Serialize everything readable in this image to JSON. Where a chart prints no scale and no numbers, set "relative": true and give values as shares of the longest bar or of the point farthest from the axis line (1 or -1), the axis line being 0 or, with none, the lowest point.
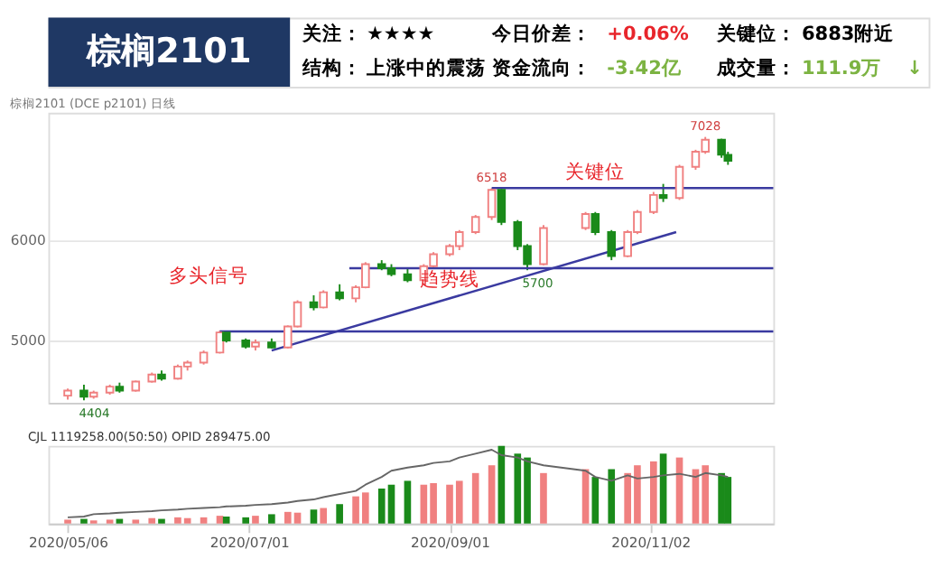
{
  "chart_data": [
    {
      "type": "other",
      "title": "棕榈2101",
      "annotations": [
        "关注：",
        "★★★★",
        "今日价差：",
        "+0.06%",
        "关键位：",
        "6883附近",
        "结构：",
        "上涨中的震荡",
        "资金流向：",
        "-3.42亿",
        "成交量：",
        "111.9万",
        "↓"
      ],
      "colors": [
        "#000000",
        "#000000",
        "#000000",
        "#e8252b",
        "#000000",
        "#000000",
        "#000000",
        "#000000",
        "#000000",
        "#7cb342",
        "#000000",
        "#7cb342",
        "#7cb342"
      ]
    },
    {
      "type": "candlestick",
      "subtitle": "棕榈2101 (DCE p2101)  日线",
      "x": [
        "2020-05-06",
        "2020-05-11",
        "2020-05-14",
        "2020-05-19",
        "2020-05-22",
        "2020-05-27",
        "2020-06-01",
        "2020-06-04",
        "2020-06-09",
        "2020-06-12",
        "2020-06-17",
        "2020-06-22",
        "2020-06-24",
        "2020-06-30",
        "2020-07-03",
        "2020-07-08",
        "2020-07-13",
        "2020-07-16",
        "2020-07-21",
        "2020-07-24",
        "2020-07-29",
        "2020-08-03",
        "2020-08-06",
        "2020-08-11",
        "2020-08-14",
        "2020-08-19",
        "2020-08-24",
        "2020-08-27",
        "2020-09-01",
        "2020-09-04",
        "2020-09-09",
        "2020-09-14",
        "2020-09-17",
        "2020-09-22",
        "2020-09-25",
        "2020-09-30",
        "2020-10-13",
        "2020-10-16",
        "2020-10-21",
        "2020-10-26",
        "2020-10-29",
        "2020-11-03",
        "2020-11-06",
        "2020-11-11",
        "2020-11-16",
        "2020-11-19",
        "2020-11-24",
        "2020-11-26"
      ],
      "ohlc": [
        [
          4450,
          4520,
          4410,
          4500
        ],
        [
          4500,
          4560,
          4404,
          4440
        ],
        [
          4440,
          4500,
          4420,
          4480
        ],
        [
          4480,
          4560,
          4460,
          4540
        ],
        [
          4540,
          4580,
          4480,
          4500
        ],
        [
          4500,
          4600,
          4490,
          4590
        ],
        [
          4590,
          4680,
          4580,
          4660
        ],
        [
          4660,
          4700,
          4600,
          4620
        ],
        [
          4620,
          4760,
          4610,
          4740
        ],
        [
          4740,
          4800,
          4700,
          4780
        ],
        [
          4780,
          4900,
          4760,
          4880
        ],
        [
          4880,
          5100,
          4870,
          5080
        ],
        [
          5080,
          5090,
          4980,
          5000
        ],
        [
          5000,
          5020,
          4920,
          4940
        ],
        [
          4940,
          5010,
          4900,
          4980
        ],
        [
          4980,
          5020,
          4920,
          4930
        ],
        [
          4930,
          5150,
          4920,
          5140
        ],
        [
          5140,
          5400,
          5130,
          5380
        ],
        [
          5380,
          5450,
          5300,
          5330
        ],
        [
          5330,
          5500,
          5320,
          5480
        ],
        [
          5480,
          5560,
          5400,
          5420
        ],
        [
          5420,
          5550,
          5380,
          5530
        ],
        [
          5530,
          5780,
          5520,
          5760
        ],
        [
          5760,
          5800,
          5700,
          5720
        ],
        [
          5720,
          5760,
          5640,
          5660
        ],
        [
          5660,
          5720,
          5580,
          5600
        ],
        [
          5600,
          5760,
          5590,
          5740
        ],
        [
          5740,
          5880,
          5720,
          5860
        ],
        [
          5860,
          5960,
          5840,
          5940
        ],
        [
          5940,
          6100,
          5900,
          6080
        ],
        [
          6080,
          6250,
          6060,
          6230
        ],
        [
          6230,
          6518,
          6200,
          6500
        ],
        [
          6500,
          6510,
          6150,
          6180
        ],
        [
          6180,
          6200,
          5900,
          5940
        ],
        [
          5940,
          5960,
          5700,
          5760
        ],
        [
          5760,
          6150,
          5750,
          6120
        ],
        [
          6120,
          6280,
          6100,
          6260
        ],
        [
          6260,
          6280,
          6050,
          6080
        ],
        [
          6080,
          6100,
          5800,
          5840
        ],
        [
          5840,
          6100,
          5830,
          6080
        ],
        [
          6080,
          6300,
          6060,
          6280
        ],
        [
          6280,
          6480,
          6260,
          6450
        ],
        [
          6450,
          6560,
          6380,
          6420
        ],
        [
          6420,
          6750,
          6400,
          6730
        ],
        [
          6730,
          6900,
          6700,
          6880
        ],
        [
          6880,
          7028,
          6860,
          7000
        ],
        [
          7000,
          7010,
          6820,
          6850
        ],
        [
          6850,
          6880,
          6750,
          6790
        ]
      ],
      "colors": [
        "#f08080",
        "#1a8a1a",
        "#f08080",
        "#f08080",
        "#1a8a1a",
        "#f08080",
        "#f08080",
        "#1a8a1a",
        "#f08080",
        "#f08080",
        "#f08080",
        "#f08080",
        "#1a8a1a",
        "#1a8a1a",
        "#f08080",
        "#1a8a1a",
        "#f08080",
        "#f08080",
        "#1a8a1a",
        "#f08080",
        "#1a8a1a",
        "#f08080",
        "#f08080",
        "#1a8a1a",
        "#1a8a1a",
        "#1a8a1a",
        "#f08080",
        "#f08080",
        "#f08080",
        "#f08080",
        "#f08080",
        "#f08080",
        "#1a8a1a",
        "#1a8a1a",
        "#1a8a1a",
        "#f08080",
        "#f08080",
        "#1a8a1a",
        "#1a8a1a",
        "#f08080",
        "#f08080",
        "#f08080",
        "#1a8a1a",
        "#f08080",
        "#f08080",
        "#f08080",
        "#1a8a1a",
        "#1a8a1a"
      ],
      "series": [
        {
          "type": "line",
          "color": "#3a3aa0",
          "x": [
            "2020-06-22",
            "2020-12-10"
          ],
          "values": [
            5090,
            5090
          ]
        },
        {
          "type": "line",
          "color": "#3a3aa0",
          "x": [
            "2020-08-01",
            "2020-12-10"
          ],
          "values": [
            5720,
            5720
          ]
        },
        {
          "type": "line",
          "color": "#3a3aa0",
          "x": [
            "2020-09-14",
            "2020-12-10"
          ],
          "values": [
            6518,
            6518
          ]
        },
        {
          "type": "line",
          "color": "#3a3aa0",
          "x": [
            "2020-07-08",
            "2020-11-10"
          ],
          "values": [
            4900,
            6080
          ]
        }
      ],
      "xlim": [
        "2020-04-30",
        "2020-12-10"
      ],
      "ylim": [
        4380,
        7270
      ],
      "yticks": [
        5000,
        6000
      ],
      "grid": "y",
      "tick_labels": "y",
      "annotations": [
        {
          "text": "6518",
          "x": "2020-09-14",
          "y": 6518
        },
        {
          "text": "7028",
          "x": "2020-11-19",
          "y": 7028
        },
        {
          "text": "5700",
          "x": "2020-09-25",
          "y": 5700
        },
        {
          "text": "4404",
          "x": "2020-05-11",
          "y": 4404
        },
        {
          "text": "关键位",
          "x": "2020-10-16",
          "y": 6518
        },
        {
          "text": "趋势线",
          "x": "2020-09-01",
          "y": 5450
        },
        "多头信号"
      ]
    },
    {
      "type": "bar",
      "relative": true,
      "x": [
        "2020-05-06",
        "2020-05-11",
        "2020-05-14",
        "2020-05-19",
        "2020-05-22",
        "2020-05-27",
        "2020-06-01",
        "2020-06-04",
        "2020-06-09",
        "2020-06-12",
        "2020-06-17",
        "2020-06-22",
        "2020-06-24",
        "2020-06-30",
        "2020-07-03",
        "2020-07-08",
        "2020-07-13",
        "2020-07-16",
        "2020-07-21",
        "2020-07-24",
        "2020-07-29",
        "2020-08-03",
        "2020-08-06",
        "2020-08-11",
        "2020-08-14",
        "2020-08-19",
        "2020-08-24",
        "2020-08-27",
        "2020-09-01",
        "2020-09-04",
        "2020-09-09",
        "2020-09-14",
        "2020-09-17",
        "2020-09-22",
        "2020-09-25",
        "2020-09-30",
        "2020-10-13",
        "2020-10-16",
        "2020-10-21",
        "2020-10-26",
        "2020-10-29",
        "2020-11-03",
        "2020-11-06",
        "2020-11-11",
        "2020-11-16",
        "2020-11-19",
        "2020-11-24",
        "2020-11-26"
      ],
      "series": [
        {
          "type": "bar",
          "colors": [
            "#f08080",
            "#1a8a1a",
            "#f08080",
            "#f08080",
            "#1a8a1a",
            "#f08080",
            "#f08080",
            "#1a8a1a",
            "#f08080",
            "#f08080",
            "#f08080",
            "#f08080",
            "#1a8a1a",
            "#1a8a1a",
            "#f08080",
            "#1a8a1a",
            "#f08080",
            "#f08080",
            "#1a8a1a",
            "#f08080",
            "#1a8a1a",
            "#f08080",
            "#f08080",
            "#1a8a1a",
            "#1a8a1a",
            "#1a8a1a",
            "#f08080",
            "#f08080",
            "#f08080",
            "#f08080",
            "#f08080",
            "#f08080",
            "#1a8a1a",
            "#1a8a1a",
            "#1a8a1a",
            "#f08080",
            "#f08080",
            "#1a8a1a",
            "#1a8a1a",
            "#f08080",
            "#f08080",
            "#f08080",
            "#1a8a1a",
            "#f08080",
            "#f08080",
            "#f08080",
            "#1a8a1a",
            "#1a8a1a"
          ],
          "values": [
            0.05,
            0.06,
            0.04,
            0.05,
            0.06,
            0.05,
            0.07,
            0.06,
            0.08,
            0.07,
            0.08,
            0.1,
            0.09,
            0.08,
            0.1,
            0.12,
            0.15,
            0.14,
            0.18,
            0.2,
            0.25,
            0.35,
            0.4,
            0.45,
            0.5,
            0.55,
            0.5,
            0.52,
            0.5,
            0.55,
            0.65,
            0.75,
            1.0,
            0.9,
            0.85,
            0.65,
            0.7,
            0.6,
            0.7,
            0.65,
            0.75,
            0.8,
            0.9,
            0.85,
            0.7,
            0.75,
            0.65,
            0.6
          ]
        },
        {
          "type": "line",
          "color": "#666666",
          "values": [
            0.08,
            0.09,
            0.12,
            0.13,
            0.14,
            0.15,
            0.16,
            0.17,
            0.18,
            0.19,
            0.2,
            0.21,
            0.22,
            0.23,
            0.24,
            0.25,
            0.27,
            0.29,
            0.31,
            0.34,
            0.38,
            0.42,
            0.5,
            0.6,
            0.68,
            0.72,
            0.75,
            0.78,
            0.8,
            0.85,
            0.9,
            0.95,
            0.88,
            0.85,
            0.8,
            0.75,
            0.68,
            0.6,
            0.55,
            0.62,
            0.58,
            0.6,
            0.62,
            0.64,
            0.6,
            0.65,
            0.62,
            0.6
          ]
        }
      ],
      "xlim": [
        "2020-04-30",
        "2020-12-10"
      ],
      "xticks": [
        {
          "value": "2020-05-06",
          "label": "2020/05/06"
        },
        {
          "value": "2020-07-01",
          "label": "2020/07/01"
        },
        {
          "value": "2020-09-01",
          "label": "2020/09/01"
        },
        {
          "value": "2020-11-02",
          "label": "2020/11/02"
        }
      ],
      "tick_labels": "x",
      "annotations": [
        "CJL  1119258.00(50:50)  OPID 289475.00"
      ]
    }
  ]
}
